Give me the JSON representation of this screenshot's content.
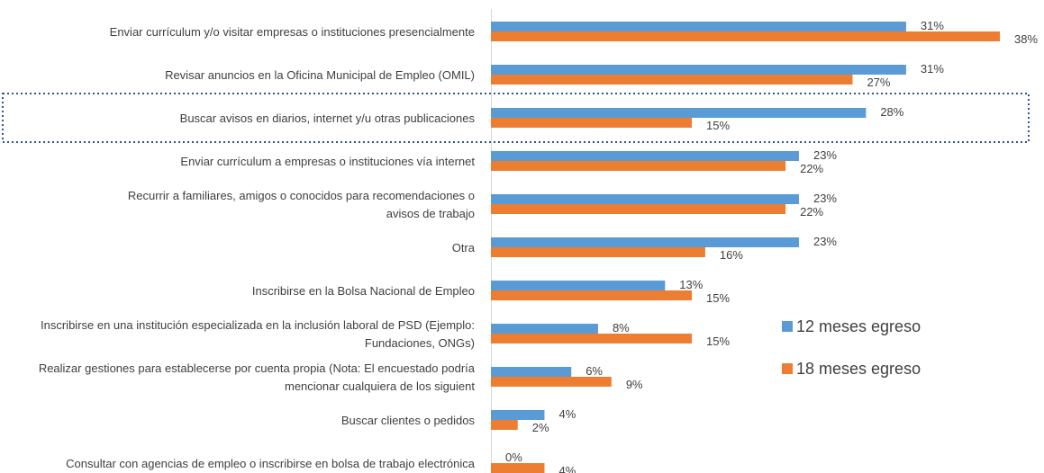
{
  "chart_data": {
    "type": "bar",
    "orientation": "horizontal",
    "categories": [
      "Enviar currículum y/o visitar empresas o instituciones presencialmente",
      "Revisar anuncios en la Oficina Municipal de Empleo (OMIL)",
      "Buscar avisos en diarios, internet y/u otras publicaciones",
      "Enviar currículum a empresas o instituciones vía internet",
      "Recurrir a familiares, amigos o conocidos para recomendaciones o avisos de trabajo",
      "Otra",
      "Inscribirse en la Bolsa Nacional de Empleo",
      "Inscribirse en una institución especializada en la inclusión laboral de PSD (Ejemplo: Fundaciones, ONGs)",
      "Realizar gestiones para establecerse por cuenta propia (Nota: El encuestado podría mencionar cualquiera de los siguient",
      "Buscar clientes o pedidos",
      "Consultar con agencias de empleo o inscribirse en bolsa de trabajo electrónica"
    ],
    "series": [
      {
        "name": "12 meses egreso",
        "color": "#5b9bd5",
        "values": [
          31,
          31,
          28,
          23,
          23,
          23,
          13,
          8,
          6,
          4,
          0
        ],
        "value_labels": [
          "31%",
          "31%",
          "28%",
          "23%",
          "23%",
          "23%",
          "13%",
          "8%",
          "6%",
          "4%",
          "0%"
        ]
      },
      {
        "name": "18 meses egreso",
        "color": "#ed7d31",
        "values": [
          38,
          27,
          15,
          22,
          22,
          16,
          15,
          15,
          9,
          2,
          4
        ],
        "value_labels": [
          "38%",
          "27%",
          "15%",
          "22%",
          "22%",
          "16%",
          "15%",
          "15%",
          "9%",
          "2%",
          "4%"
        ]
      }
    ],
    "xlim": [
      0,
      38
    ],
    "legend": "right"
  }
}
